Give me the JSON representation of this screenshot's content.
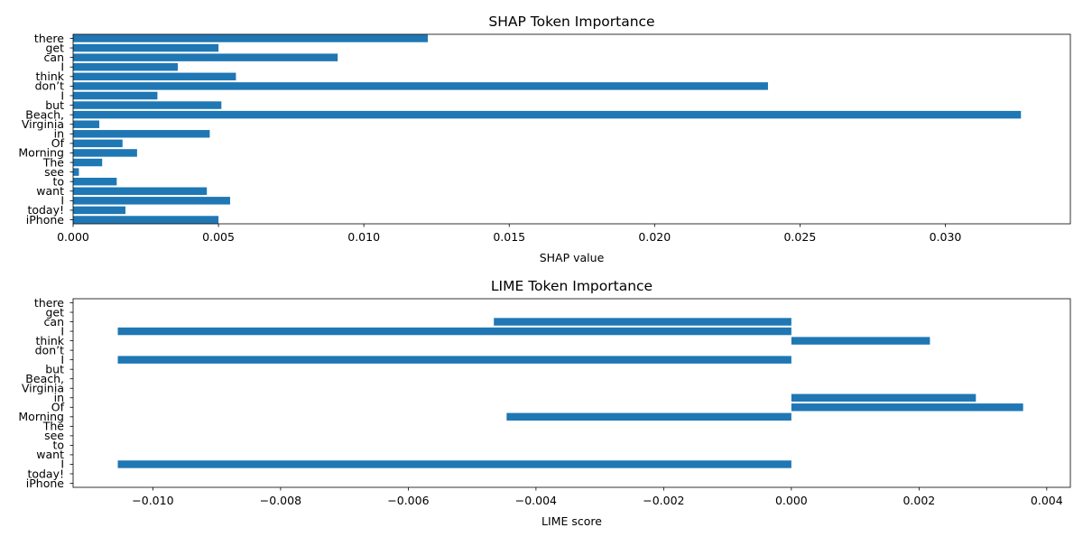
{
  "bar_color": "#1f77b4",
  "chart_data": [
    {
      "type": "bar",
      "orientation": "horizontal",
      "title": "SHAP Token Importance",
      "xlabel": "SHAP value",
      "ylabel": "",
      "xlim": [
        0.0,
        0.0343
      ],
      "xticks": [
        0.0,
        0.005,
        0.01,
        0.015,
        0.02,
        0.025,
        0.03
      ],
      "xtick_labels": [
        "0.000",
        "0.005",
        "0.010",
        "0.015",
        "0.020",
        "0.025",
        "0.030"
      ],
      "categories": [
        "there",
        "get",
        "can",
        "I",
        "think",
        "don’t",
        "I",
        "but",
        "Beach,",
        "Virginia",
        "in",
        "Of",
        "Morning",
        "The",
        "see",
        "to",
        "want",
        "I",
        "today!",
        "iPhone"
      ],
      "values": [
        0.0122,
        0.005,
        0.0091,
        0.0036,
        0.0056,
        0.0239,
        0.0029,
        0.0051,
        0.0326,
        0.0009,
        0.0047,
        0.0017,
        0.0022,
        0.001,
        0.0002,
        0.0015,
        0.0046,
        0.0054,
        0.0018,
        0.005
      ],
      "grid": false
    },
    {
      "type": "bar",
      "orientation": "horizontal",
      "title": "LIME Token Importance",
      "xlabel": "LIME score",
      "ylabel": "",
      "xlim": [
        -0.01125,
        0.00437
      ],
      "xticks": [
        -0.01,
        -0.008,
        -0.006,
        -0.004,
        -0.002,
        0.0,
        0.002,
        0.004
      ],
      "xtick_labels": [
        "−0.010",
        "−0.008",
        "−0.006",
        "−0.004",
        "−0.002",
        "0.000",
        "0.002",
        "0.004"
      ],
      "categories": [
        "there",
        "get",
        "can",
        "I",
        "think",
        "don’t",
        "I",
        "but",
        "Beach,",
        "Virginia",
        "in",
        "Of",
        "Morning",
        "The",
        "see",
        "to",
        "want",
        "I",
        "today!",
        "iPhone"
      ],
      "values": [
        0.0,
        0.0,
        -0.00466,
        -0.01055,
        0.00217,
        0.0,
        -0.01055,
        0.0,
        0.0,
        0.0,
        0.00289,
        0.00363,
        -0.00446,
        0.0,
        0.0,
        0.0,
        0.0,
        -0.01055,
        0.0,
        0.0
      ],
      "grid": false
    }
  ]
}
